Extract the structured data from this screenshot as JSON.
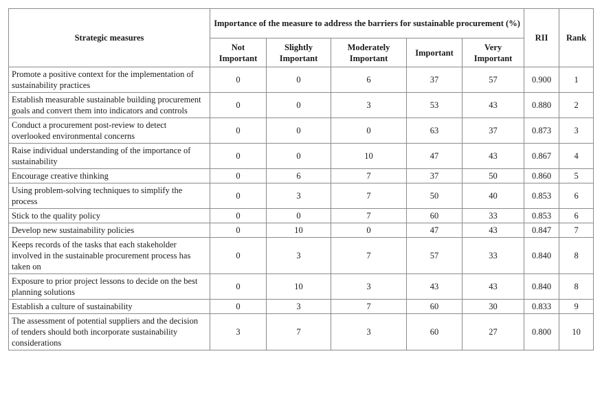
{
  "table": {
    "headers": {
      "measure": "Strategic measures",
      "group": "Importance of the measure to address the barriers for sustainable procurement (%)",
      "levels": [
        "Not Important",
        "Slightly Important",
        "Moderately Important",
        "Important",
        "Very Important"
      ],
      "rii": "RII",
      "rank": "Rank"
    },
    "rows": [
      [
        "Promote a positive context for the implementation of sustainability practices",
        "0",
        "0",
        "6",
        "37",
        "57",
        "0.900",
        "1"
      ],
      [
        "Establish measurable sustainable building procurement goals and convert them into indicators and controls",
        "0",
        "0",
        "3",
        "53",
        "43",
        "0.880",
        "2"
      ],
      [
        "Conduct a procurement post-review to detect overlooked environmental concerns",
        "0",
        "0",
        "0",
        "63",
        "37",
        "0.873",
        "3"
      ],
      [
        "Raise individual understanding of the importance of sustainability",
        "0",
        "0",
        "10",
        "47",
        "43",
        "0.867",
        "4"
      ],
      [
        "Encourage creative thinking",
        "0",
        "6",
        "7",
        "37",
        "50",
        "0.860",
        "5"
      ],
      [
        "Using problem-solving techniques to simplify the process",
        "0",
        "3",
        "7",
        "50",
        "40",
        "0.853",
        "6"
      ],
      [
        "Stick to the quality policy",
        "0",
        "0",
        "7",
        "60",
        "33",
        "0.853",
        "6"
      ],
      [
        "Develop new sustainability policies",
        "0",
        "10",
        "0",
        "47",
        "43",
        "0.847",
        "7"
      ],
      [
        "Keeps records of the tasks that each stakeholder involved in the sustainable procurement process has taken on",
        "0",
        "3",
        "7",
        "57",
        "33",
        "0.840",
        "8"
      ],
      [
        "Exposure to prior project lessons to decide on the best planning solutions",
        "0",
        "10",
        "3",
        "43",
        "43",
        "0.840",
        "8"
      ],
      [
        "Establish a culture of sustainability",
        "0",
        "3",
        "7",
        "60",
        "30",
        "0.833",
        "9"
      ],
      [
        "The assessment of potential suppliers and the decision of tenders should both incorporate sustainability considerations",
        "3",
        "7",
        "3",
        "60",
        "27",
        "0.800",
        "10"
      ]
    ]
  }
}
